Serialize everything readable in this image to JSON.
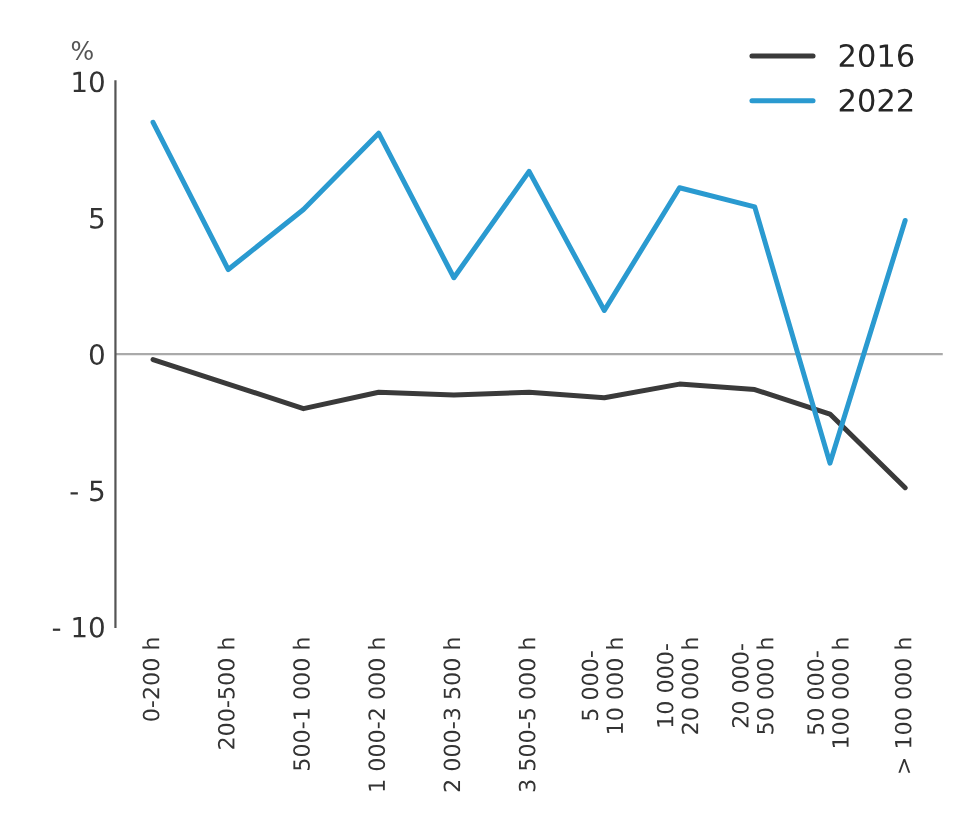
{
  "chart_data": {
    "type": "line",
    "ylabel": "%",
    "categories": [
      "0-200 h",
      "200-500 h",
      "500-1 000 h",
      "1 000-2 000 h",
      "2 000-3 500 h",
      "3 500-5 000 h",
      "5 000-\n10 000 h",
      "10 000-\n20 000 h",
      "20 000-\n50 000 h",
      "50 000-\n100 000 h",
      "> 100 000 h"
    ],
    "series": [
      {
        "name": "2016",
        "color": "#3a3a3a",
        "values": [
          -0.2,
          -1.1,
          -2.0,
          -1.4,
          -1.5,
          -1.4,
          -1.6,
          -1.1,
          -1.3,
          -2.2,
          -4.9
        ]
      },
      {
        "name": "2022",
        "color": "#2a9ad0",
        "values": [
          8.5,
          3.1,
          5.3,
          8.1,
          2.8,
          6.7,
          1.6,
          6.1,
          5.4,
          -4.0,
          4.9
        ]
      }
    ],
    "ylim": [
      -10,
      10
    ],
    "yticks": [
      {
        "value": -10,
        "label": "- 10"
      },
      {
        "value": -5,
        "label": "- 5"
      },
      0,
      5,
      10
    ],
    "ref_lines": [
      {
        "axis": "y",
        "value": 0,
        "color": "#aaaaaa"
      }
    ],
    "grid": false,
    "legend": "top right",
    "marker": "none",
    "line_style": "solid"
  }
}
